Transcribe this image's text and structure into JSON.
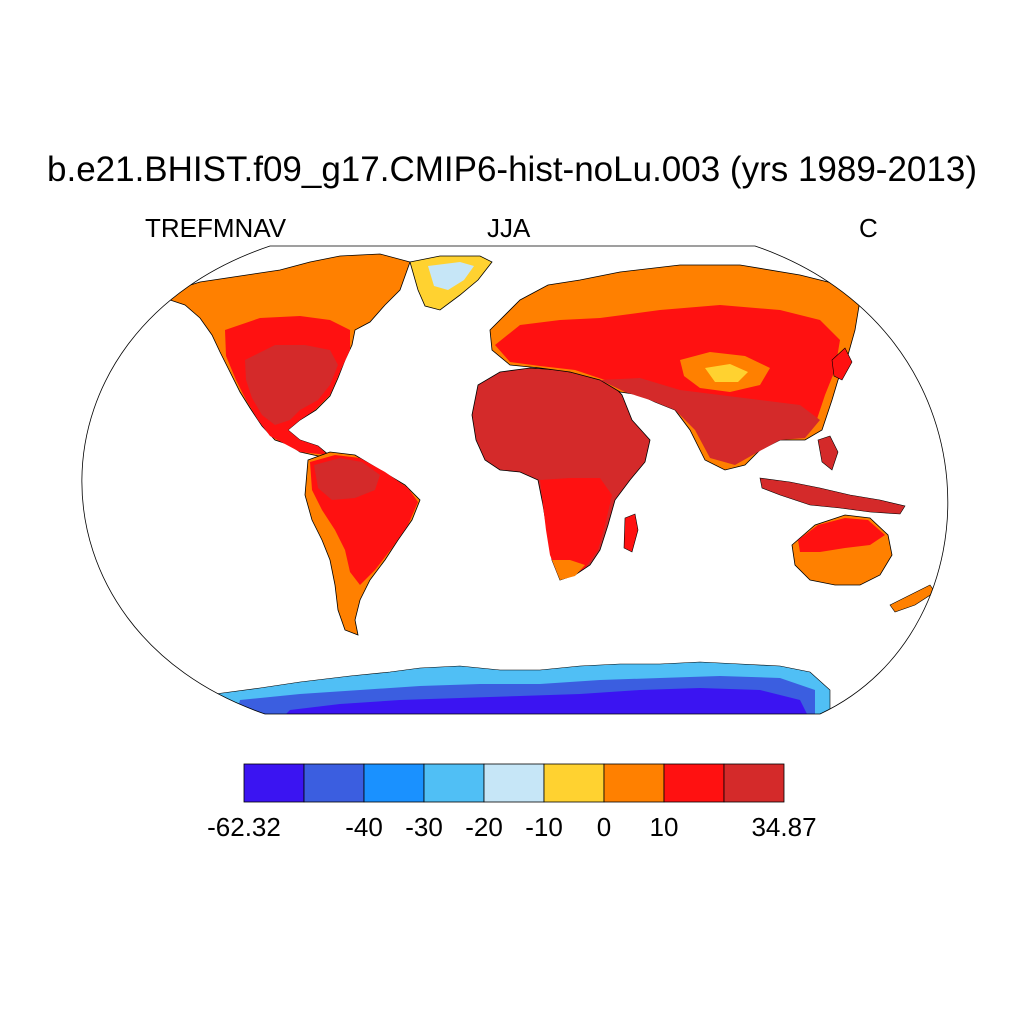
{
  "title": "b.e21.BHIST.f09_g17.CMIP6-hist-noLu.003 (yrs 1989-2013)",
  "subtitle_left": "TREFMNAV",
  "subtitle_center": "JJA",
  "subtitle_right": "C",
  "colorbar": {
    "colors": [
      "#3b14f2",
      "#3b5ee0",
      "#1a91ff",
      "#50bff5",
      "#c6e6f7",
      "#ffd230",
      "#ff8000",
      "#ff1111",
      "#d42a2a"
    ],
    "labels": [
      "-62.32",
      "-40",
      "-30",
      "-20",
      "-10",
      "0",
      "10",
      "34.87"
    ]
  },
  "colors": {
    "ocean": "#ffffff",
    "coast": "#000000",
    "map_outline": "#000000"
  }
}
